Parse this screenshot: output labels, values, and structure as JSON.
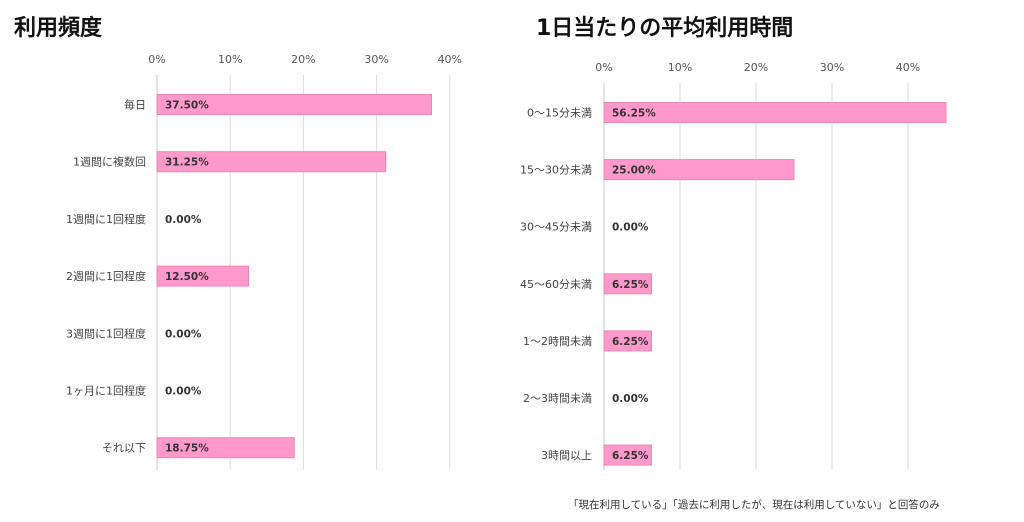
{
  "chart_data": [
    {
      "type": "bar",
      "orientation": "horizontal",
      "title": "利用頻度",
      "categories": [
        "毎日",
        "1週間に複数回",
        "1週間に1回程度",
        "2週間に1回程度",
        "3週間に1回程度",
        "1ヶ月に1回程度",
        "それ以下"
      ],
      "values": [
        37.5,
        31.25,
        0.0,
        12.5,
        0.0,
        0.0,
        18.75
      ],
      "data_labels": [
        "37.50%",
        "31.25%",
        "0.00%",
        "12.50%",
        "0.00%",
        "0.00%",
        "18.75%"
      ],
      "ticks": [
        "0%",
        "10%",
        "20%",
        "30%",
        "40%"
      ],
      "xlim": [
        0,
        40
      ],
      "grid": true,
      "bar_color": "#ff99cc",
      "bar_stroke": "#e888b8"
    },
    {
      "type": "bar",
      "orientation": "horizontal",
      "title": "1日当たりの平均利用時間",
      "categories": [
        "0〜15分未満",
        "15〜30分未満",
        "30〜45分未満",
        "45〜60分未満",
        "1〜2時間未満",
        "2〜3時間未満",
        "3時間以上"
      ],
      "values": [
        56.25,
        25.0,
        0.0,
        6.25,
        6.25,
        0.0,
        6.25
      ],
      "data_labels": [
        "56.25%",
        "25.00%",
        "0.00%",
        "6.25%",
        "6.25%",
        "0.00%",
        "6.25%"
      ],
      "ticks": [
        "0%",
        "10%",
        "20%",
        "30%",
        "40%"
      ],
      "xlim": [
        0,
        40
      ],
      "grid": true,
      "bar_color": "#ff99cc",
      "bar_stroke": "#e888b8"
    }
  ],
  "footnote": "「現在利用している」「過去に利用したが、現在は利用していない」と回答のみ"
}
